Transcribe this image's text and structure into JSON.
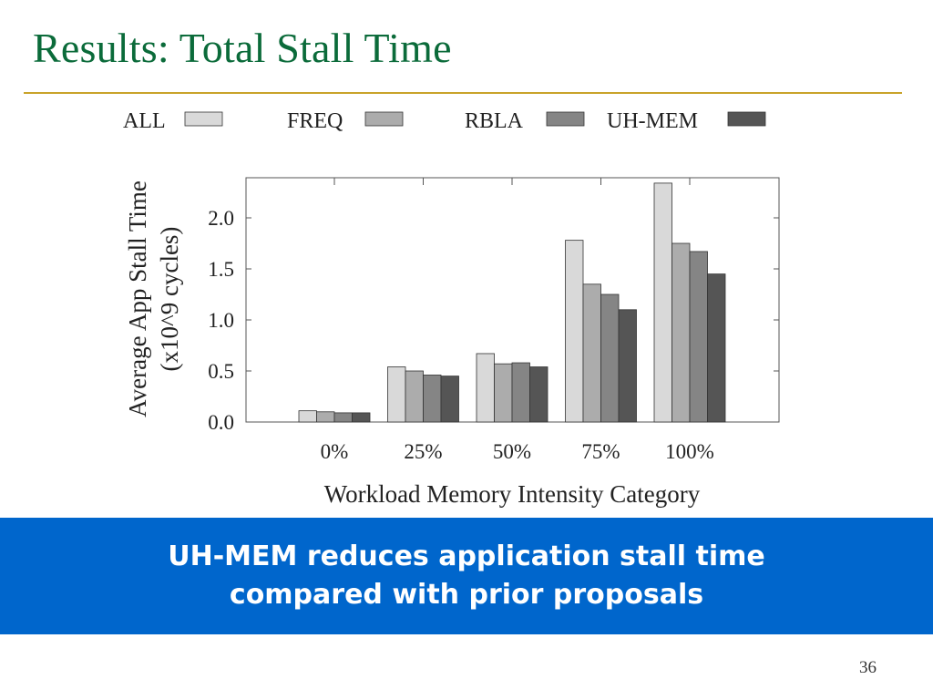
{
  "slide": {
    "title": "Results: Total Stall Time",
    "takeaway_line1": "UH-MEM reduces application stall time",
    "takeaway_line2": "compared with prior proposals",
    "page_number": "36"
  },
  "colors": {
    "title": "#0b6b3a",
    "rule": "#c9a32a",
    "banner": "#0066cc",
    "banner_text": "#ffffff"
  },
  "chart_data": {
    "type": "bar",
    "title": "",
    "xlabel": "Workload Memory Intensity Category",
    "ylabel_line1": "Average App Stall Time",
    "ylabel_line2": "(x10^9 cycles)",
    "categories": [
      "0%",
      "25%",
      "50%",
      "75%",
      "100%"
    ],
    "ylim": [
      0,
      2.4
    ],
    "yticks": [
      "0.0",
      "0.5",
      "1.0",
      "1.5",
      "2.0"
    ],
    "legend_position": "top",
    "grid": false,
    "series": [
      {
        "name": "ALL",
        "color": "#d9d9d9",
        "values": [
          0.11,
          0.54,
          0.67,
          1.78,
          2.34
        ]
      },
      {
        "name": "FREQ",
        "color": "#acacac",
        "values": [
          0.1,
          0.5,
          0.57,
          1.35,
          1.75
        ]
      },
      {
        "name": "RBLA",
        "color": "#858585",
        "values": [
          0.09,
          0.46,
          0.58,
          1.25,
          1.67
        ]
      },
      {
        "name": "UH-MEM",
        "color": "#555555",
        "values": [
          0.09,
          0.45,
          0.54,
          1.1,
          1.45
        ]
      }
    ]
  }
}
